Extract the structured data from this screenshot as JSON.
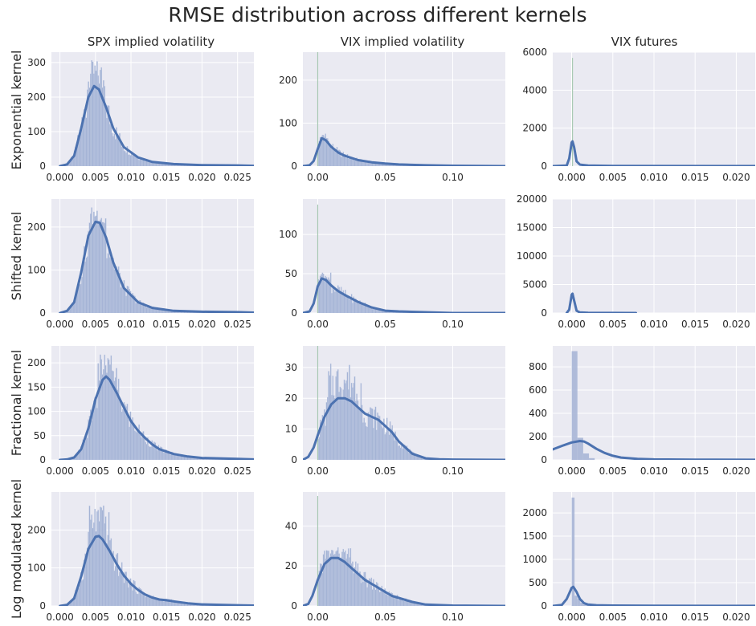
{
  "title": "RMSE distribution across different kernels",
  "column_titles": [
    "SPX implied volatility",
    "VIX implied volatility",
    "VIX futures"
  ],
  "row_titles": [
    "Exponential kernel",
    "Shifted kernel",
    "Fractional kernel",
    "Log modulated kernel"
  ],
  "colors": {
    "panel_bg": "#eaeaf2",
    "grid": "#ffffff",
    "hist": "#a4b3d5",
    "kde": "#4c72b0",
    "spike": "#a9c9b4"
  },
  "chart_data": [
    {
      "type": "histogram",
      "row": 0,
      "col": 0,
      "xlim": [
        -0.0012,
        0.0273
      ],
      "ylim": [
        0,
        330
      ],
      "xticks": [
        0,
        0.005,
        0.01,
        0.015,
        0.02,
        0.025
      ],
      "xtick_labels": [
        "0.000",
        "0.005",
        "0.010",
        "0.015",
        "0.020",
        "0.025"
      ],
      "yticks": [
        0,
        100,
        200,
        300
      ],
      "kde": {
        "x": [
          0.0,
          0.001,
          0.002,
          0.003,
          0.004,
          0.0048,
          0.0055,
          0.0065,
          0.0075,
          0.009,
          0.011,
          0.013,
          0.016,
          0.02,
          0.025,
          0.0273
        ],
        "y": [
          0,
          5,
          30,
          110,
          200,
          232,
          222,
          170,
          110,
          55,
          25,
          12,
          6,
          3,
          2,
          1
        ]
      },
      "hist_peak": 318,
      "spike_x": null,
      "spike_h": null,
      "kde_xmax": null
    },
    {
      "type": "histogram",
      "row": 0,
      "col": 1,
      "xlim": [
        -0.011,
        0.139
      ],
      "ylim": [
        0,
        265
      ],
      "xticks": [
        0,
        0.05,
        0.1
      ],
      "xtick_labels": [
        "0.00",
        "0.05",
        "0.10"
      ],
      "yticks": [
        0,
        100,
        200
      ],
      "kde": {
        "x": [
          -0.011,
          -0.006,
          -0.003,
          0.0,
          0.003,
          0.006,
          0.01,
          0.015,
          0.02,
          0.03,
          0.04,
          0.05,
          0.06,
          0.08,
          0.1,
          0.139
        ],
        "y": [
          0,
          2,
          12,
          40,
          65,
          60,
          45,
          32,
          24,
          14,
          9,
          6,
          4,
          2,
          1,
          0
        ]
      },
      "hist_peak": 80,
      "spike_x": 0.0,
      "spike_h": 275,
      "kde_xmax": null
    },
    {
      "type": "histogram",
      "row": 0,
      "col": 2,
      "xlim": [
        -0.0023,
        0.0223
      ],
      "ylim": [
        0,
        6000
      ],
      "xticks": [
        0,
        0.005,
        0.01,
        0.015,
        0.02
      ],
      "xtick_labels": [
        "0.000",
        "0.005",
        "0.010",
        "0.015",
        "0.020"
      ],
      "yticks": [
        0,
        2000,
        4000,
        6000
      ],
      "kde": {
        "x": [
          -0.0023,
          -0.0006,
          -0.0003,
          0.0,
          0.0001,
          0.0003,
          0.0006,
          0.001,
          0.002,
          0.005,
          0.0223
        ],
        "y": [
          0,
          30,
          400,
          1250,
          1300,
          1000,
          250,
          80,
          30,
          10,
          5
        ]
      },
      "hist_peak": 0,
      "spike_x": 0.0001,
      "spike_h": 5700,
      "kde_xmax": null
    },
    {
      "type": "histogram",
      "row": 1,
      "col": 0,
      "xlim": [
        -0.0012,
        0.0273
      ],
      "ylim": [
        0,
        265
      ],
      "xticks": [
        0,
        0.005,
        0.01,
        0.015,
        0.02,
        0.025
      ],
      "xtick_labels": [
        "0.000",
        "0.005",
        "0.010",
        "0.015",
        "0.020",
        "0.025"
      ],
      "yticks": [
        0,
        100,
        200
      ],
      "kde": {
        "x": [
          0.0,
          0.001,
          0.002,
          0.003,
          0.004,
          0.005,
          0.0056,
          0.0065,
          0.0075,
          0.009,
          0.011,
          0.013,
          0.016,
          0.02,
          0.025,
          0.0273
        ],
        "y": [
          0,
          5,
          25,
          95,
          180,
          212,
          210,
          175,
          118,
          58,
          25,
          12,
          5,
          3,
          2,
          1
        ]
      },
      "hist_peak": 255,
      "spike_x": null,
      "spike_h": null,
      "kde_xmax": null
    },
    {
      "type": "histogram",
      "row": 1,
      "col": 1,
      "xlim": [
        -0.011,
        0.139
      ],
      "ylim": [
        0,
        145
      ],
      "xticks": [
        0,
        0.05,
        0.1
      ],
      "xtick_labels": [
        "0.00",
        "0.05",
        "0.10"
      ],
      "yticks": [
        0,
        50,
        100
      ],
      "kde": {
        "x": [
          -0.011,
          -0.006,
          -0.003,
          0.0,
          0.003,
          0.006,
          0.01,
          0.015,
          0.02,
          0.03,
          0.04,
          0.05,
          0.06,
          0.08,
          0.1,
          0.139
        ],
        "y": [
          0,
          2,
          12,
          34,
          44,
          42,
          35,
          28,
          23,
          14,
          7,
          3,
          2,
          1,
          0,
          0
        ]
      },
      "hist_peak": 55,
      "spike_x": 0.0,
      "spike_h": 138,
      "kde_xmax": null
    },
    {
      "type": "histogram",
      "row": 1,
      "col": 2,
      "xlim": [
        -0.0023,
        0.0223
      ],
      "ylim": [
        0,
        20000
      ],
      "xticks": [
        0,
        0.005,
        0.01,
        0.015,
        0.02
      ],
      "xtick_labels": [
        "0.000",
        "0.005",
        "0.010",
        "0.015",
        "0.020"
      ],
      "yticks": [
        0,
        5000,
        10000,
        15000,
        20000
      ],
      "kde": {
        "x": [
          -0.0006,
          -0.0003,
          0.0,
          0.0001,
          0.0003,
          0.0006,
          0.001,
          0.002,
          0.005,
          0.0078
        ],
        "y": [
          0,
          600,
          3200,
          3400,
          2200,
          400,
          100,
          30,
          10,
          5
        ]
      },
      "hist_peak": 0,
      "spike_x": null,
      "spike_h": null,
      "kde_xmax": 0.0078
    },
    {
      "type": "histogram",
      "row": 2,
      "col": 0,
      "xlim": [
        -0.0012,
        0.0273
      ],
      "ylim": [
        0,
        235
      ],
      "xticks": [
        0,
        0.005,
        0.01,
        0.015,
        0.02,
        0.025
      ],
      "xtick_labels": [
        "0.000",
        "0.005",
        "0.010",
        "0.015",
        "0.020",
        "0.025"
      ],
      "yticks": [
        0,
        50,
        100,
        150,
        200
      ],
      "kde": {
        "x": [
          0.0,
          0.001,
          0.002,
          0.003,
          0.004,
          0.005,
          0.006,
          0.0065,
          0.007,
          0.008,
          0.009,
          0.01,
          0.011,
          0.012,
          0.013,
          0.014,
          0.016,
          0.018,
          0.02,
          0.025,
          0.0273
        ],
        "y": [
          0,
          1,
          5,
          22,
          65,
          125,
          165,
          172,
          165,
          138,
          108,
          80,
          60,
          45,
          32,
          22,
          12,
          7,
          4,
          2,
          1
        ]
      },
      "hist_peak": 225,
      "spike_x": null,
      "spike_h": null,
      "kde_xmax": null
    },
    {
      "type": "histogram",
      "row": 2,
      "col": 1,
      "xlim": [
        -0.011,
        0.139
      ],
      "ylim": [
        0,
        37
      ],
      "xticks": [
        0,
        0.05,
        0.1
      ],
      "xtick_labels": [
        "0.00",
        "0.05",
        "0.10"
      ],
      "yticks": [
        0,
        10,
        20,
        30
      ],
      "kde": {
        "x": [
          -0.011,
          -0.007,
          -0.003,
          0.0,
          0.005,
          0.01,
          0.015,
          0.02,
          0.025,
          0.03,
          0.035,
          0.04,
          0.045,
          0.05,
          0.055,
          0.06,
          0.065,
          0.07,
          0.08,
          0.09,
          0.1,
          0.139
        ],
        "y": [
          0,
          1,
          4,
          8,
          14,
          18,
          20,
          20,
          19,
          17,
          15,
          14,
          13,
          11,
          9,
          6,
          4,
          2,
          0.5,
          0.2,
          0.1,
          0
        ]
      },
      "hist_peak": 33,
      "spike_x": 0.0,
      "spike_h": 38,
      "kde_xmax": null
    },
    {
      "type": "histogram",
      "row": 2,
      "col": 2,
      "xlim": [
        -0.0023,
        0.0223
      ],
      "ylim": [
        0,
        980
      ],
      "xticks": [
        0,
        0.005,
        0.01,
        0.015,
        0.02
      ],
      "xtick_labels": [
        "0.000",
        "0.005",
        "0.010",
        "0.015",
        "0.020"
      ],
      "yticks": [
        0,
        200,
        400,
        600,
        800
      ],
      "kde": {
        "x": [
          -0.0023,
          -0.001,
          0.0,
          0.001,
          0.0015,
          0.002,
          0.003,
          0.004,
          0.005,
          0.006,
          0.008,
          0.01,
          0.015,
          0.0223
        ],
        "y": [
          90,
          125,
          150,
          162,
          158,
          140,
          95,
          60,
          35,
          20,
          8,
          4,
          2,
          1
        ]
      },
      "hist_peak": 0,
      "spike_x": null,
      "spike_h": null,
      "kde_xmax": null,
      "bars": [
        {
          "x0": 0.0,
          "x1": 0.0007,
          "h": 935
        },
        {
          "x0": 0.0007,
          "x1": 0.0014,
          "h": 190
        },
        {
          "x0": 0.0014,
          "x1": 0.0021,
          "h": 55
        },
        {
          "x0": 0.0021,
          "x1": 0.0028,
          "h": 15
        }
      ]
    },
    {
      "type": "histogram",
      "row": 3,
      "col": 0,
      "xlim": [
        -0.0012,
        0.0273
      ],
      "ylim": [
        0,
        300
      ],
      "xticks": [
        0,
        0.005,
        0.01,
        0.015,
        0.02,
        0.025
      ],
      "xtick_labels": [
        "0.000",
        "0.005",
        "0.010",
        "0.015",
        "0.020",
        "0.025"
      ],
      "yticks": [
        0,
        100,
        200
      ],
      "kde": {
        "x": [
          0.0,
          0.001,
          0.002,
          0.003,
          0.004,
          0.005,
          0.0055,
          0.006,
          0.007,
          0.008,
          0.009,
          0.01,
          0.011,
          0.012,
          0.013,
          0.014,
          0.015,
          0.016,
          0.018,
          0.02,
          0.025,
          0.0273
        ],
        "y": [
          0,
          3,
          20,
          78,
          150,
          182,
          184,
          175,
          145,
          110,
          80,
          58,
          42,
          30,
          22,
          17,
          15,
          12,
          7,
          4,
          2,
          1
        ]
      },
      "hist_peak": 280,
      "spike_x": null,
      "spike_h": null,
      "kde_xmax": null
    },
    {
      "type": "histogram",
      "row": 3,
      "col": 1,
      "xlim": [
        -0.011,
        0.139
      ],
      "ylim": [
        0,
        57
      ],
      "xticks": [
        0,
        0.05,
        0.1
      ],
      "xtick_labels": [
        "0.00",
        "0.05",
        "0.10"
      ],
      "yticks": [
        0,
        20,
        40
      ],
      "kde": {
        "x": [
          -0.011,
          -0.007,
          -0.004,
          0.0,
          0.005,
          0.01,
          0.015,
          0.02,
          0.025,
          0.03,
          0.035,
          0.04,
          0.045,
          0.05,
          0.055,
          0.06,
          0.07,
          0.08,
          0.1,
          0.139
        ],
        "y": [
          0,
          1,
          5,
          13,
          21,
          24,
          24,
          22,
          19,
          16,
          13,
          11,
          9,
          7,
          5,
          4,
          2,
          0.7,
          0.2,
          0
        ]
      },
      "hist_peak": 30,
      "spike_x": 0.0,
      "spike_h": 55,
      "kde_xmax": null
    },
    {
      "type": "histogram",
      "row": 3,
      "col": 2,
      "xlim": [
        -0.0023,
        0.0223
      ],
      "ylim": [
        0,
        2450
      ],
      "xticks": [
        0,
        0.005,
        0.01,
        0.015,
        0.02
      ],
      "xtick_labels": [
        "0.000",
        "0.005",
        "0.010",
        "0.015",
        "0.020"
      ],
      "yticks": [
        0,
        500,
        1000,
        1500,
        2000
      ],
      "kde": {
        "x": [
          -0.0023,
          -0.0012,
          -0.0006,
          0.0,
          0.0002,
          0.0006,
          0.001,
          0.0015,
          0.002,
          0.003,
          0.005,
          0.01,
          0.0223
        ],
        "y": [
          0,
          20,
          150,
          390,
          410,
          300,
          150,
          60,
          30,
          15,
          8,
          3,
          1
        ]
      },
      "hist_peak": 0,
      "spike_x": null,
      "spike_h": null,
      "kde_xmax": null,
      "bars": [
        {
          "x0": 0.0,
          "x1": 0.00035,
          "h": 2330
        },
        {
          "x0": 0.00035,
          "x1": 0.0007,
          "h": 220
        },
        {
          "x0": 0.0007,
          "x1": 0.00105,
          "h": 150
        },
        {
          "x0": 0.00105,
          "x1": 0.0014,
          "h": 70
        },
        {
          "x0": 0.0014,
          "x1": 0.0021,
          "h": 30
        }
      ]
    }
  ]
}
